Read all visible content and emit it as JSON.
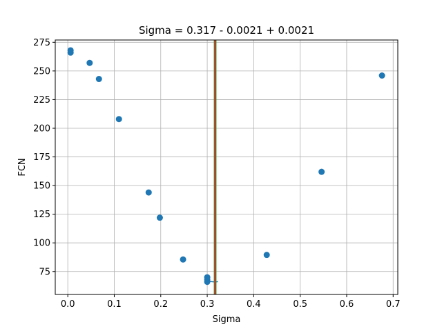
{
  "chart_data": {
    "type": "scatter",
    "title": "Sigma = 0.317 - 0.0021 + 0.0021",
    "xlabel": "Sigma",
    "ylabel": "FCN",
    "xlim": [
      -0.027,
      0.71
    ],
    "ylim": [
      55,
      277
    ],
    "xticks": [
      0.0,
      0.1,
      0.2,
      0.3,
      0.4,
      0.5,
      0.6,
      0.7
    ],
    "xtick_labels": [
      "0.0",
      "0.1",
      "0.2",
      "0.3",
      "0.4",
      "0.5",
      "0.6",
      "0.7"
    ],
    "yticks": [
      75,
      100,
      125,
      150,
      175,
      200,
      225,
      250,
      275
    ],
    "ytick_labels": [
      "75",
      "100",
      "125",
      "150",
      "175",
      "200",
      "225",
      "250",
      "275"
    ],
    "grid": true,
    "marker_color": "#1f77b4",
    "points": [
      {
        "x": 0.006,
        "y": 268
      },
      {
        "x": 0.006,
        "y": 266
      },
      {
        "x": 0.047,
        "y": 257
      },
      {
        "x": 0.067,
        "y": 243
      },
      {
        "x": 0.11,
        "y": 208
      },
      {
        "x": 0.174,
        "y": 144
      },
      {
        "x": 0.198,
        "y": 122
      },
      {
        "x": 0.248,
        "y": 85.5
      },
      {
        "x": 0.3,
        "y": 70
      },
      {
        "x": 0.3,
        "y": 68
      },
      {
        "x": 0.3,
        "y": 66
      },
      {
        "x": 0.428,
        "y": 89.5
      },
      {
        "x": 0.546,
        "y": 162
      },
      {
        "x": 0.676,
        "y": 246
      }
    ],
    "fit_curve": {
      "color": "#1f77b4",
      "x": [
        0.303,
        0.309,
        0.315,
        0.319,
        0.323
      ],
      "y": [
        66.8,
        66.2,
        66.0,
        66.0,
        66.2
      ]
    },
    "best_fit_line": {
      "x": 0.317,
      "color": "#d62728"
    },
    "uncertainty_line": {
      "color": "#2ca02c",
      "x_low": 0.3149,
      "x_high": 0.3191
    }
  }
}
